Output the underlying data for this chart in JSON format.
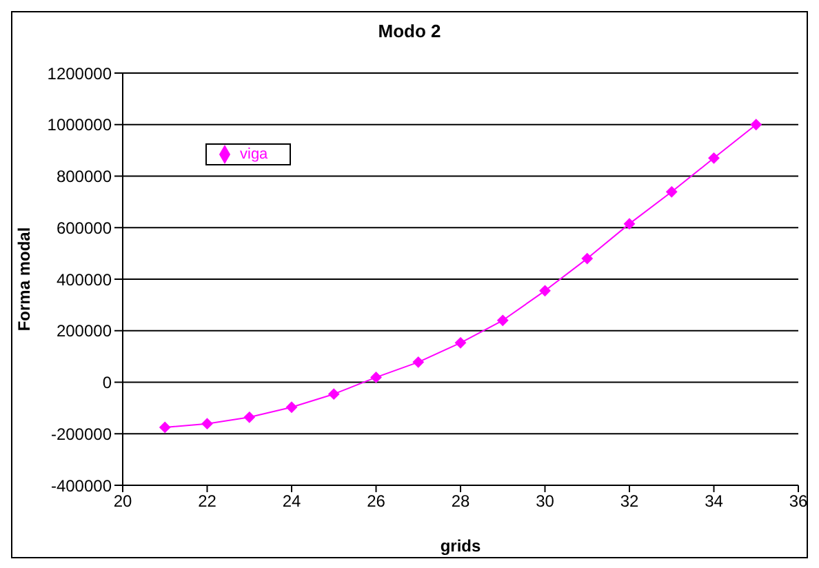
{
  "chart_data": {
    "type": "line",
    "title": "Modo 2",
    "xlabel": "grids",
    "ylabel": "Forma modal",
    "x": [
      21,
      22,
      23,
      24,
      25,
      26,
      27,
      28,
      29,
      30,
      31,
      32,
      33,
      34,
      35
    ],
    "series": [
      {
        "name": "viga",
        "color": "#ff00ff",
        "values": [
          -175000,
          -161000,
          -136000,
          -97000,
          -46000,
          19000,
          78000,
          153000,
          240000,
          355000,
          480000,
          615000,
          739000,
          870000,
          1000000
        ]
      }
    ],
    "xlim": [
      20,
      36
    ],
    "xticks": [
      20,
      22,
      24,
      26,
      28,
      30,
      32,
      34,
      36
    ],
    "ylim": [
      -400000,
      1200000
    ],
    "yticks": [
      -400000,
      -200000,
      0,
      200000,
      400000,
      600000,
      800000,
      1000000,
      1200000
    ],
    "grid": "y",
    "legend": "top left",
    "marker": "diamond",
    "line_style": "solid"
  }
}
